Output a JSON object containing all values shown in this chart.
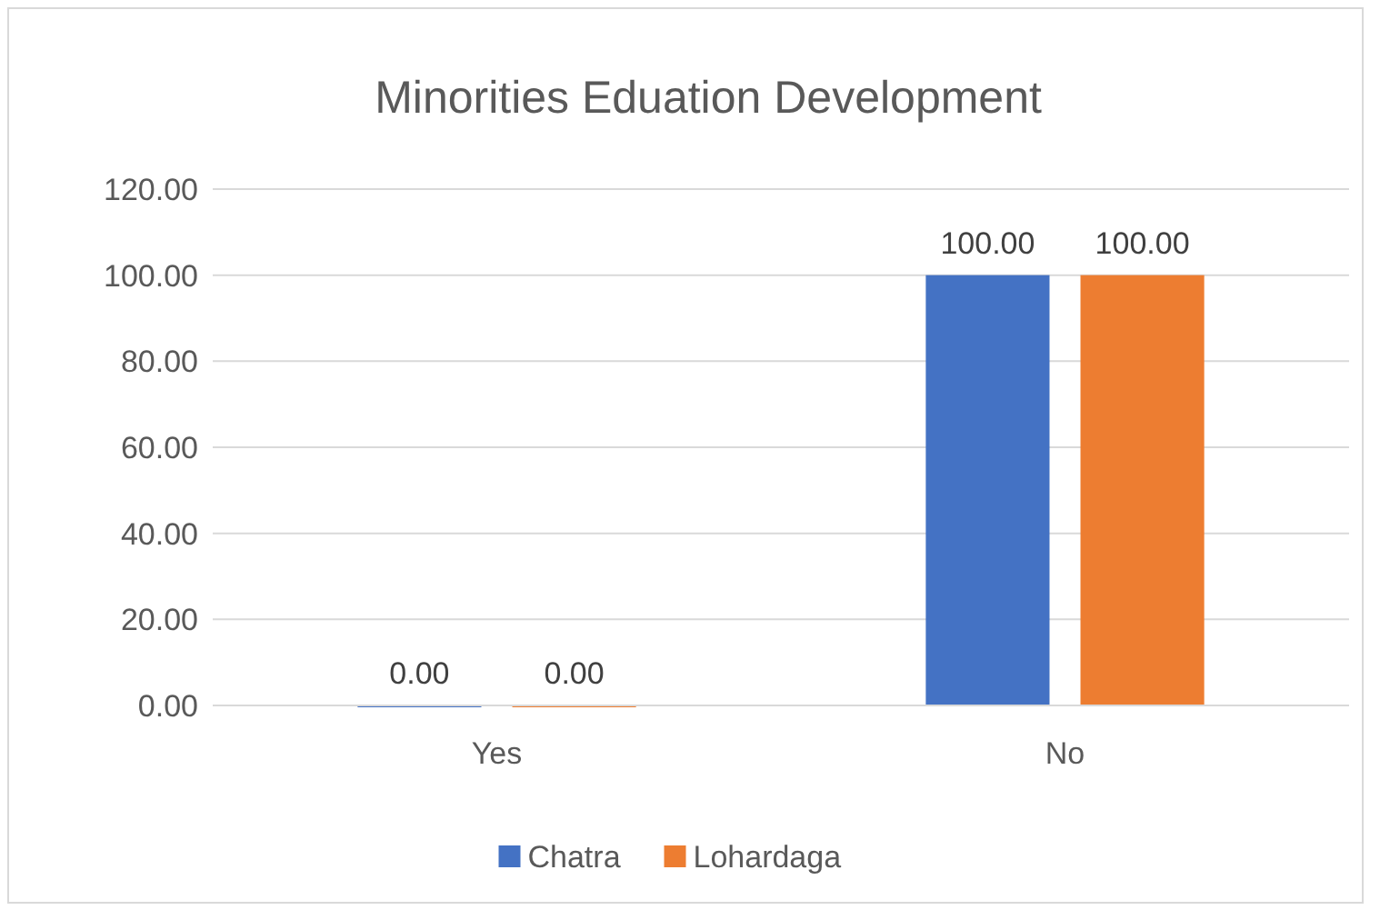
{
  "chart_data": {
    "type": "bar",
    "title": "Minorities Eduation Development",
    "categories": [
      "Yes",
      "No"
    ],
    "series": [
      {
        "name": "Chatra",
        "color": "#4472c4",
        "values": [
          0,
          100
        ],
        "value_labels": [
          "0.00",
          "100.00"
        ]
      },
      {
        "name": "Lohardaga",
        "color": "#ed7d31",
        "values": [
          0,
          100
        ],
        "value_labels": [
          "0.00",
          "100.00"
        ]
      }
    ],
    "ylim": [
      0,
      120
    ],
    "yticks": [
      {
        "value": 0,
        "label": "0.00"
      },
      {
        "value": 20,
        "label": "20.00"
      },
      {
        "value": 40,
        "label": "40.00"
      },
      {
        "value": 60,
        "label": "60.00"
      },
      {
        "value": 80,
        "label": "80.00"
      },
      {
        "value": 100,
        "label": "100.00"
      },
      {
        "value": 120,
        "label": "120.00"
      }
    ],
    "grid": "y",
    "legend": "bottom"
  }
}
